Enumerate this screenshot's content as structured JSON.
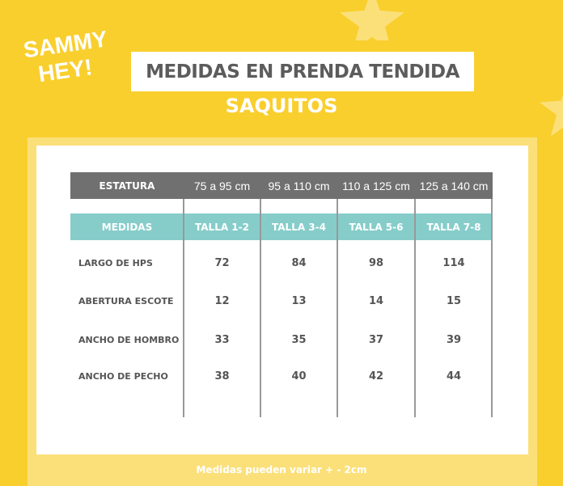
{
  "brand": {
    "logo_line1": "SAMMY",
    "logo_line2": "HEY!"
  },
  "title": "MEDIDAS EN PRENDA TENDIDA",
  "subtitle": "SAQUITOS",
  "table": {
    "stature_label": "ESTATURA",
    "statures": [
      "75 a 95 cm",
      "95 a 110 cm",
      "110 a 125 cm",
      "125 a 140 cm"
    ],
    "measures_label": "MEDIDAS",
    "sizes": [
      "TALLA 1-2",
      "TALLA 3-4",
      "TALLA 5-6",
      "TALLA 7-8"
    ],
    "rows": [
      {
        "label": "LARGO DE HPS",
        "values": [
          "72",
          "84",
          "98",
          "114"
        ]
      },
      {
        "label": "ABERTURA ESCOTE",
        "values": [
          "12",
          "13",
          "14",
          "15"
        ]
      },
      {
        "label": "ANCHO DE HOMBRO",
        "values": [
          "33",
          "35",
          "37",
          "39"
        ]
      },
      {
        "label": "ANCHO DE PECHO",
        "values": [
          "38",
          "40",
          "42",
          "44"
        ]
      }
    ]
  },
  "footer": "Medidas pueden variar + - 2cm",
  "colors": {
    "background": "#f9cf2e",
    "header_gray": "#707070",
    "header_teal": "#86cdca"
  }
}
